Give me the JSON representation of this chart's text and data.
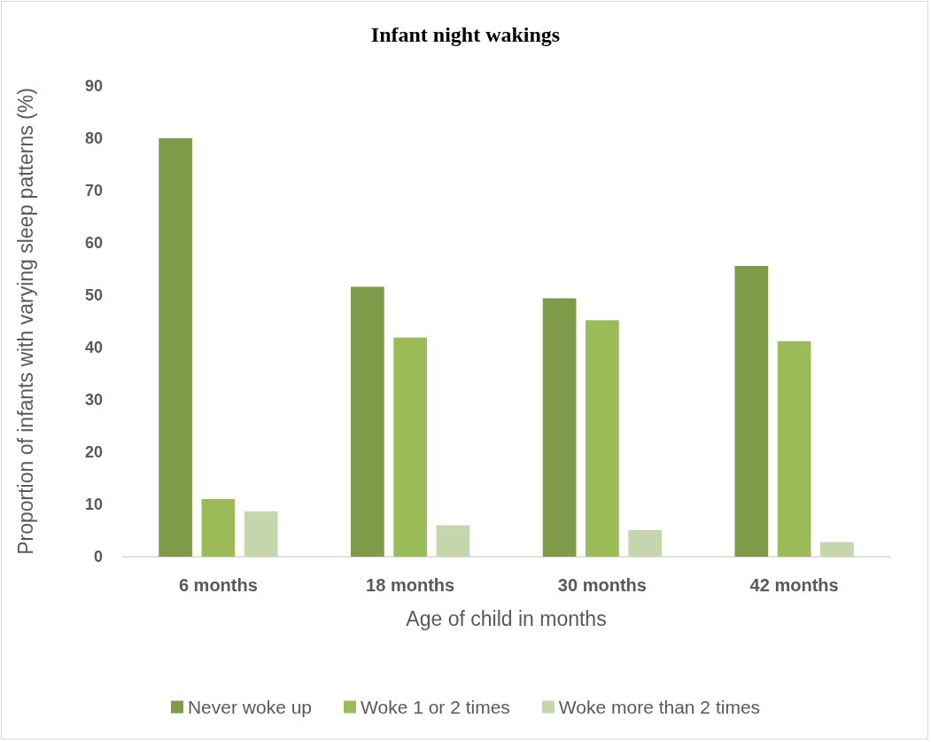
{
  "chart_data": {
    "type": "bar",
    "title": "Infant night wakings",
    "xlabel": "Age of child in months",
    "ylabel": "Proportion of infants with varying sleep patterns (%)",
    "categories": [
      "6 months",
      "18 months",
      "30 months",
      "42 months"
    ],
    "series": [
      {
        "name": "Never woke up",
        "color": "#7f9a48",
        "values": [
          80.0,
          51.6,
          49.4,
          55.6
        ]
      },
      {
        "name": "Woke 1 or 2 times",
        "color": "#9bbb59",
        "values": [
          11.0,
          41.9,
          45.2,
          41.2
        ]
      },
      {
        "name": "Woke more than 2 times",
        "color": "#c5d6ac",
        "values": [
          8.7,
          6.0,
          5.1,
          2.8
        ]
      }
    ],
    "ylim": [
      0,
      90
    ],
    "yticks": [
      0,
      10,
      20,
      30,
      40,
      50,
      60,
      70,
      80,
      90
    ],
    "grid": false,
    "legend": "bottom"
  }
}
